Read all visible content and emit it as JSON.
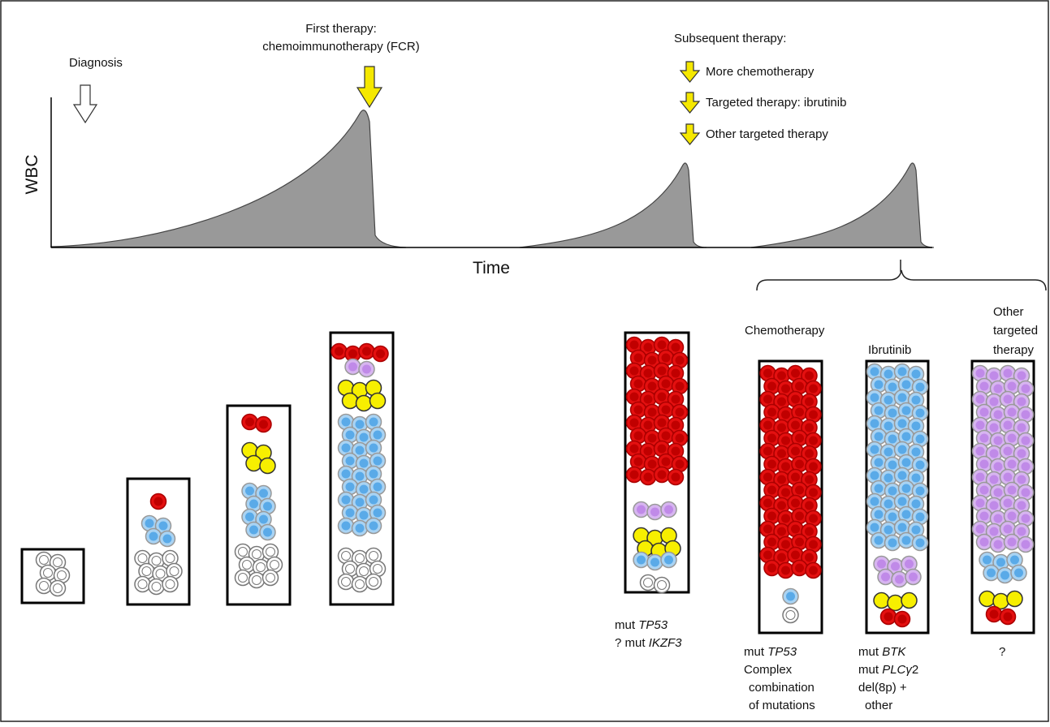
{
  "annotations": {
    "diagnosis": "Diagnosis",
    "first_therapy": [
      "First therapy:",
      "chemoimmunotherapy (FCR)"
    ],
    "subsequent_therapy": {
      "title": "Subsequent therapy:",
      "options": [
        "More chemotherapy",
        "Targeted therapy: ibrutinib",
        "Other targeted therapy"
      ]
    }
  },
  "axes": {
    "y": "WBC",
    "x": "Time"
  },
  "branches": [
    {
      "title": [
        "Chemotherapy"
      ]
    },
    {
      "title": [
        "Ibrutinib"
      ]
    },
    {
      "title": [
        "Other",
        "targeted",
        "therapy"
      ]
    }
  ],
  "labels": [
    [
      [
        {
          "text": "mut "
        },
        {
          "text": "TP53",
          "italic": true
        }
      ],
      [
        {
          "text": "? mut "
        },
        {
          "text": "IKZF3",
          "italic": true
        }
      ]
    ],
    [
      [
        {
          "text": "mut "
        },
        {
          "text": "TP53",
          "italic": true
        }
      ],
      [
        {
          "text": "Complex"
        }
      ],
      [
        {
          "text": "combination"
        }
      ],
      [
        {
          "text": "of mutations"
        }
      ]
    ],
    [
      [
        {
          "text": "mut "
        },
        {
          "text": "BTK",
          "italic": true
        }
      ],
      [
        {
          "text": "mut "
        },
        {
          "text": "PLCγ",
          "italic": true
        },
        {
          "text": "2"
        }
      ],
      [
        {
          "text": "del(8p) +"
        }
      ],
      [
        {
          "text": "other"
        }
      ]
    ],
    [
      [
        {
          "text": "?"
        }
      ]
    ]
  ]
}
